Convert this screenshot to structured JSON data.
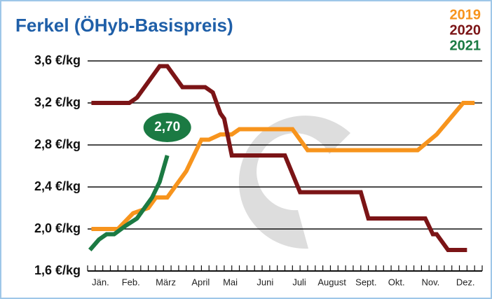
{
  "chart_data": {
    "type": "line",
    "title": "Ferkel (ÖHyb-Basispreis)",
    "xlim": [
      0,
      52
    ],
    "xticks": [
      {
        "value": 1.7,
        "label": "Jän."
      },
      {
        "value": 5.7,
        "label": "Feb."
      },
      {
        "value": 10.3,
        "label": "März"
      },
      {
        "value": 14.9,
        "label": "April"
      },
      {
        "value": 18.8,
        "label": "Mai"
      },
      {
        "value": 23.4,
        "label": "Juni"
      },
      {
        "value": 27.9,
        "label": "Juli"
      },
      {
        "value": 32.2,
        "label": "August"
      },
      {
        "value": 36.7,
        "label": "Sept."
      },
      {
        "value": 40.7,
        "label": "Okt."
      },
      {
        "value": 45.2,
        "label": "Nov."
      },
      {
        "value": 49.8,
        "label": "Dez."
      }
    ],
    "ylim": [
      1.6,
      3.6
    ],
    "yticks": [
      {
        "value": 1.6,
        "label": "1,6 €/kg"
      },
      {
        "value": 2.0,
        "label": "2,0 €/kg"
      },
      {
        "value": 2.4,
        "label": "2,4 €/kg"
      },
      {
        "value": 2.8,
        "label": "2,8 €/kg"
      },
      {
        "value": 3.2,
        "label": "3,2 €/kg"
      },
      {
        "value": 3.6,
        "label": "3,6 €/kg"
      }
    ],
    "grid": true,
    "series": [
      {
        "name": "2019",
        "color": "#f7941d",
        "x": [
          0.5,
          4,
          6,
          8,
          9,
          10.5,
          13,
          15,
          16,
          17.5,
          19,
          20,
          27,
          29,
          43.5,
          46,
          49.5,
          51
        ],
        "values": [
          2.0,
          2.0,
          2.15,
          2.2,
          2.3,
          2.3,
          2.55,
          2.85,
          2.85,
          2.9,
          2.9,
          2.95,
          2.95,
          2.75,
          2.75,
          2.9,
          3.2,
          3.2
        ]
      },
      {
        "name": "2020",
        "color": "#7b1416",
        "x": [
          0.5,
          5.5,
          6.5,
          9.5,
          10.5,
          12.5,
          15.5,
          16.5,
          17.5,
          18,
          19,
          26,
          28,
          36,
          37,
          44.5,
          45.5,
          46,
          47.5,
          50
        ],
        "values": [
          3.2,
          3.2,
          3.25,
          3.55,
          3.55,
          3.35,
          3.35,
          3.3,
          3.1,
          3.05,
          2.7,
          2.7,
          2.35,
          2.35,
          2.1,
          2.1,
          1.95,
          1.95,
          1.8,
          1.8
        ]
      },
      {
        "name": "2021",
        "color": "#1b7a43",
        "x": [
          0.3,
          1.5,
          2.5,
          3.5,
          5,
          6.5,
          8.5,
          9.5,
          10.5
        ],
        "values": [
          1.8,
          1.9,
          1.95,
          1.95,
          2.03,
          2.1,
          2.3,
          2.45,
          2.7
        ],
        "value_labels": [
          null,
          null,
          null,
          null,
          null,
          null,
          null,
          null,
          "2,70"
        ]
      }
    ]
  }
}
